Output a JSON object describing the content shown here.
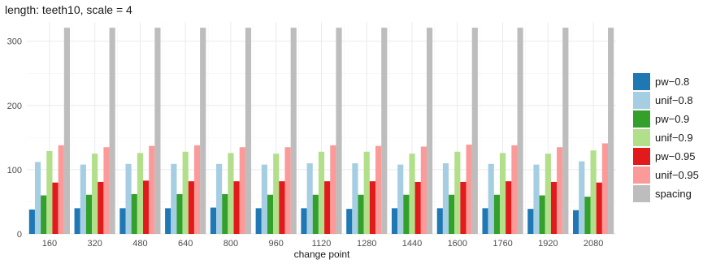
{
  "chart_data": {
    "type": "bar",
    "title": "length: teeth10, scale = 4",
    "xlabel": "change point",
    "ylabel": "",
    "ylim": [
      0,
      330
    ],
    "yticks": [
      0,
      100,
      200,
      300
    ],
    "grid": true,
    "legend_position": "right",
    "categories": [
      "160",
      "320",
      "480",
      "640",
      "800",
      "960",
      "1120",
      "1280",
      "1440",
      "1600",
      "1760",
      "1920",
      "2080"
    ],
    "series": [
      {
        "name": "pw−0.8",
        "color": "#1f78b4",
        "values": [
          38,
          40,
          40,
          40,
          41,
          40,
          40,
          39,
          40,
          40,
          40,
          39,
          37
        ]
      },
      {
        "name": "unif−0.8",
        "color": "#a6cee3",
        "values": [
          112,
          108,
          109,
          109,
          109,
          108,
          110,
          110,
          108,
          110,
          109,
          108,
          113
        ]
      },
      {
        "name": "pw−0.9",
        "color": "#33a02c",
        "values": [
          60,
          61,
          62,
          62,
          62,
          61,
          61,
          61,
          61,
          61,
          61,
          60,
          58
        ]
      },
      {
        "name": "unif−0.9",
        "color": "#b2df8a",
        "values": [
          129,
          125,
          126,
          128,
          126,
          125,
          128,
          128,
          125,
          128,
          126,
          125,
          130
        ]
      },
      {
        "name": "pw−0.95",
        "color": "#e31a1c",
        "values": [
          80,
          81,
          83,
          82,
          82,
          82,
          82,
          82,
          81,
          81,
          82,
          81,
          80
        ]
      },
      {
        "name": "unif−0.95",
        "color": "#fb9a99",
        "values": [
          138,
          135,
          137,
          138,
          135,
          135,
          138,
          137,
          136,
          139,
          138,
          135,
          141
        ]
      },
      {
        "name": "spacing",
        "color": "#bdbdbd",
        "values": [
          321,
          321,
          321,
          321,
          321,
          321,
          321,
          321,
          321,
          321,
          321,
          321,
          321
        ]
      }
    ]
  }
}
